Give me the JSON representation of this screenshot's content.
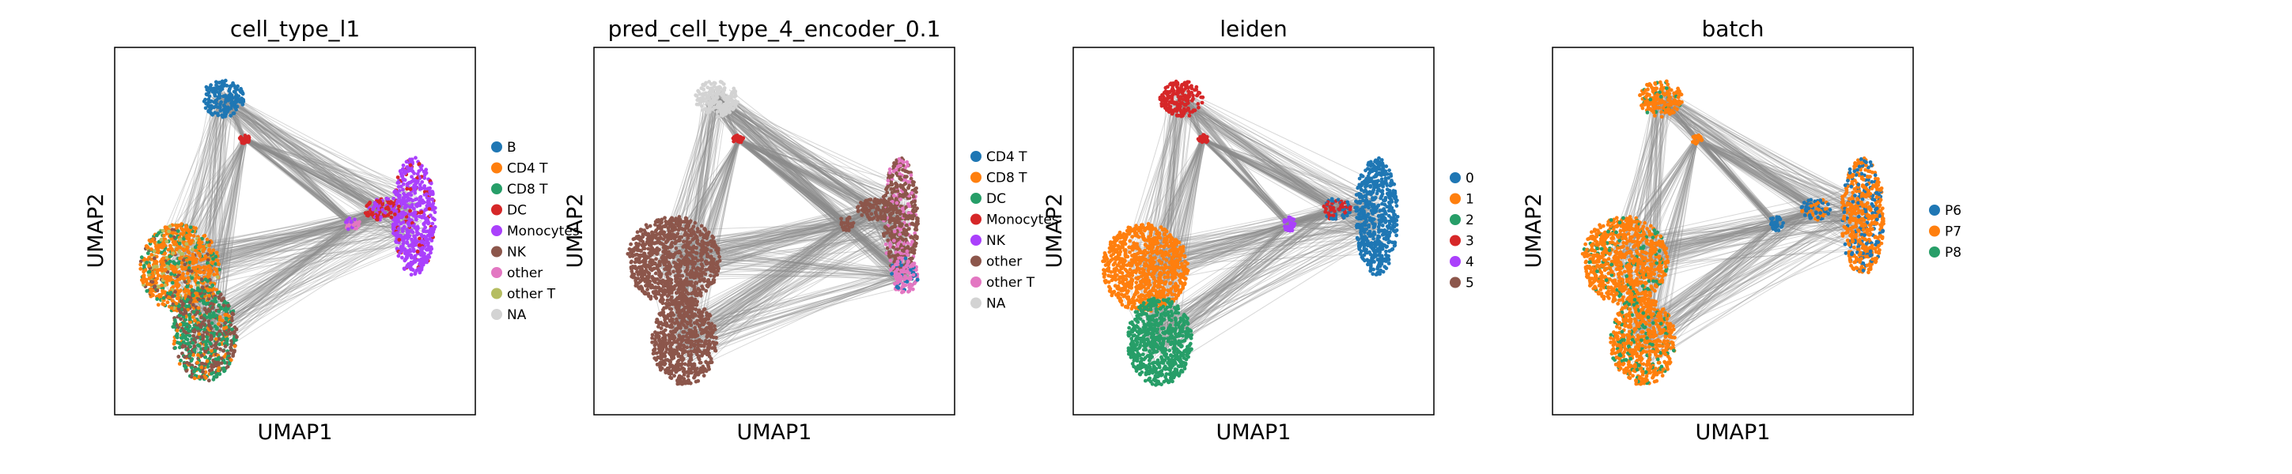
{
  "chart_data": [
    {
      "type": "scatter",
      "title": "cell_type_l1",
      "xlabel": "UMAP1",
      "ylabel": "UMAP2",
      "grid": false,
      "legend_placement": "right",
      "legend": [
        {
          "label": "B",
          "color": "#1f77b4"
        },
        {
          "label": "CD4 T",
          "color": "#ff7f0e"
        },
        {
          "label": "CD8 T",
          "color": "#279e68"
        },
        {
          "label": "DC",
          "color": "#d62728"
        },
        {
          "label": "Monocytes",
          "color": "#aa40fc"
        },
        {
          "label": "NK",
          "color": "#8c564b"
        },
        {
          "label": "other",
          "color": "#e377c2"
        },
        {
          "label": "other T",
          "color": "#b5bd61"
        },
        {
          "label": "NA",
          "color": "#d3d3d3"
        }
      ],
      "regions": [
        {
          "cx": 0.3,
          "cy": 0.86,
          "rx": 0.06,
          "ry": 0.05,
          "mix": [
            [
              0,
              1
            ]
          ]
        },
        {
          "cx": 0.36,
          "cy": 0.75,
          "rx": 0.015,
          "ry": 0.012,
          "mix": [
            [
              3,
              1
            ]
          ]
        },
        {
          "cx": 0.18,
          "cy": 0.4,
          "rx": 0.11,
          "ry": 0.12,
          "mix": [
            [
              1,
              0.6
            ],
            [
              2,
              0.2
            ],
            [
              7,
              0.1
            ],
            [
              5,
              0.1
            ]
          ]
        },
        {
          "cx": 0.25,
          "cy": 0.22,
          "rx": 0.09,
          "ry": 0.13,
          "mix": [
            [
              2,
              0.45
            ],
            [
              5,
              0.4
            ],
            [
              1,
              0.15
            ]
          ]
        },
        {
          "cx": 0.83,
          "cy": 0.54,
          "rx": 0.06,
          "ry": 0.16,
          "mix": [
            [
              4,
              0.9
            ],
            [
              3,
              0.1
            ]
          ]
        },
        {
          "cx": 0.66,
          "cy": 0.52,
          "rx": 0.02,
          "ry": 0.02,
          "mix": [
            [
              6,
              0.7
            ],
            [
              4,
              0.3
            ]
          ]
        },
        {
          "cx": 0.74,
          "cy": 0.56,
          "rx": 0.05,
          "ry": 0.03,
          "mix": [
            [
              3,
              0.6
            ],
            [
              4,
              0.4
            ]
          ]
        }
      ]
    },
    {
      "type": "scatter",
      "title": "pred_cell_type_4_encoder_0.1",
      "xlabel": "UMAP1",
      "ylabel": "UMAP2",
      "grid": false,
      "legend_placement": "right",
      "legend": [
        {
          "label": "CD4 T",
          "color": "#1f77b4"
        },
        {
          "label": "CD8 T",
          "color": "#ff7f0e"
        },
        {
          "label": "DC",
          "color": "#279e68"
        },
        {
          "label": "Monocytes",
          "color": "#d62728"
        },
        {
          "label": "NK",
          "color": "#aa40fc"
        },
        {
          "label": "other",
          "color": "#8c564b"
        },
        {
          "label": "other T",
          "color": "#e377c2"
        },
        {
          "label": "NA",
          "color": "#d3d3d3"
        }
      ],
      "regions": [
        {
          "cx": 0.34,
          "cy": 0.86,
          "rx": 0.06,
          "ry": 0.05,
          "mix": [
            [
              7,
              1
            ]
          ]
        },
        {
          "cx": 0.4,
          "cy": 0.75,
          "rx": 0.015,
          "ry": 0.012,
          "mix": [
            [
              3,
              1
            ]
          ]
        },
        {
          "cx": 0.22,
          "cy": 0.42,
          "rx": 0.13,
          "ry": 0.12,
          "mix": [
            [
              5,
              1
            ]
          ]
        },
        {
          "cx": 0.25,
          "cy": 0.2,
          "rx": 0.09,
          "ry": 0.12,
          "mix": [
            [
              5,
              1
            ]
          ]
        },
        {
          "cx": 0.85,
          "cy": 0.54,
          "rx": 0.05,
          "ry": 0.16,
          "mix": [
            [
              5,
              0.75
            ],
            [
              6,
              0.25
            ]
          ]
        },
        {
          "cx": 0.86,
          "cy": 0.38,
          "rx": 0.04,
          "ry": 0.05,
          "mix": [
            [
              6,
              0.8
            ],
            [
              0,
              0.2
            ]
          ]
        },
        {
          "cx": 0.7,
          "cy": 0.52,
          "rx": 0.02,
          "ry": 0.02,
          "mix": [
            [
              5,
              1
            ]
          ]
        },
        {
          "cx": 0.78,
          "cy": 0.56,
          "rx": 0.05,
          "ry": 0.03,
          "mix": [
            [
              5,
              1
            ]
          ]
        }
      ]
    },
    {
      "type": "scatter",
      "title": "leiden",
      "xlabel": "UMAP1",
      "ylabel": "UMAP2",
      "grid": false,
      "legend_placement": "right",
      "legend": [
        {
          "label": "0",
          "color": "#1f77b4"
        },
        {
          "label": "1",
          "color": "#ff7f0e"
        },
        {
          "label": "2",
          "color": "#279e68"
        },
        {
          "label": "3",
          "color": "#d62728"
        },
        {
          "label": "4",
          "color": "#aa40fc"
        },
        {
          "label": "5",
          "color": "#8c564b"
        }
      ],
      "regions": [
        {
          "cx": 0.3,
          "cy": 0.86,
          "rx": 0.06,
          "ry": 0.05,
          "mix": [
            [
              3,
              1
            ]
          ]
        },
        {
          "cx": 0.36,
          "cy": 0.75,
          "rx": 0.015,
          "ry": 0.012,
          "mix": [
            [
              3,
              1
            ]
          ]
        },
        {
          "cx": 0.2,
          "cy": 0.4,
          "rx": 0.12,
          "ry": 0.12,
          "mix": [
            [
              1,
              1
            ]
          ]
        },
        {
          "cx": 0.24,
          "cy": 0.2,
          "rx": 0.09,
          "ry": 0.12,
          "mix": [
            [
              2,
              1
            ]
          ]
        },
        {
          "cx": 0.84,
          "cy": 0.54,
          "rx": 0.06,
          "ry": 0.16,
          "mix": [
            [
              0,
              1
            ]
          ]
        },
        {
          "cx": 0.6,
          "cy": 0.52,
          "rx": 0.02,
          "ry": 0.02,
          "mix": [
            [
              4,
              1
            ]
          ]
        },
        {
          "cx": 0.73,
          "cy": 0.56,
          "rx": 0.04,
          "ry": 0.03,
          "mix": [
            [
              3,
              0.5
            ],
            [
              0,
              0.5
            ]
          ]
        }
      ]
    },
    {
      "type": "scatter",
      "title": "batch",
      "xlabel": "UMAP1",
      "ylabel": "UMAP2",
      "grid": false,
      "legend_placement": "right",
      "legend": [
        {
          "label": "P6",
          "color": "#1f77b4"
        },
        {
          "label": "P7",
          "color": "#ff7f0e"
        },
        {
          "label": "P8",
          "color": "#279e68"
        }
      ],
      "regions": [
        {
          "cx": 0.3,
          "cy": 0.86,
          "rx": 0.06,
          "ry": 0.05,
          "mix": [
            [
              1,
              0.9
            ],
            [
              2,
              0.1
            ]
          ]
        },
        {
          "cx": 0.4,
          "cy": 0.75,
          "rx": 0.015,
          "ry": 0.012,
          "mix": [
            [
              1,
              1
            ]
          ]
        },
        {
          "cx": 0.2,
          "cy": 0.42,
          "rx": 0.12,
          "ry": 0.12,
          "mix": [
            [
              1,
              0.85
            ],
            [
              2,
              0.15
            ]
          ]
        },
        {
          "cx": 0.25,
          "cy": 0.2,
          "rx": 0.09,
          "ry": 0.12,
          "mix": [
            [
              1,
              0.8
            ],
            [
              2,
              0.2
            ]
          ]
        },
        {
          "cx": 0.86,
          "cy": 0.54,
          "rx": 0.06,
          "ry": 0.16,
          "mix": [
            [
              1,
              0.75
            ],
            [
              0,
              0.25
            ]
          ]
        },
        {
          "cx": 0.62,
          "cy": 0.52,
          "rx": 0.02,
          "ry": 0.02,
          "mix": [
            [
              0,
              1
            ]
          ]
        },
        {
          "cx": 0.73,
          "cy": 0.56,
          "rx": 0.04,
          "ry": 0.03,
          "mix": [
            [
              0,
              0.6
            ],
            [
              1,
              0.4
            ]
          ]
        }
      ]
    }
  ]
}
